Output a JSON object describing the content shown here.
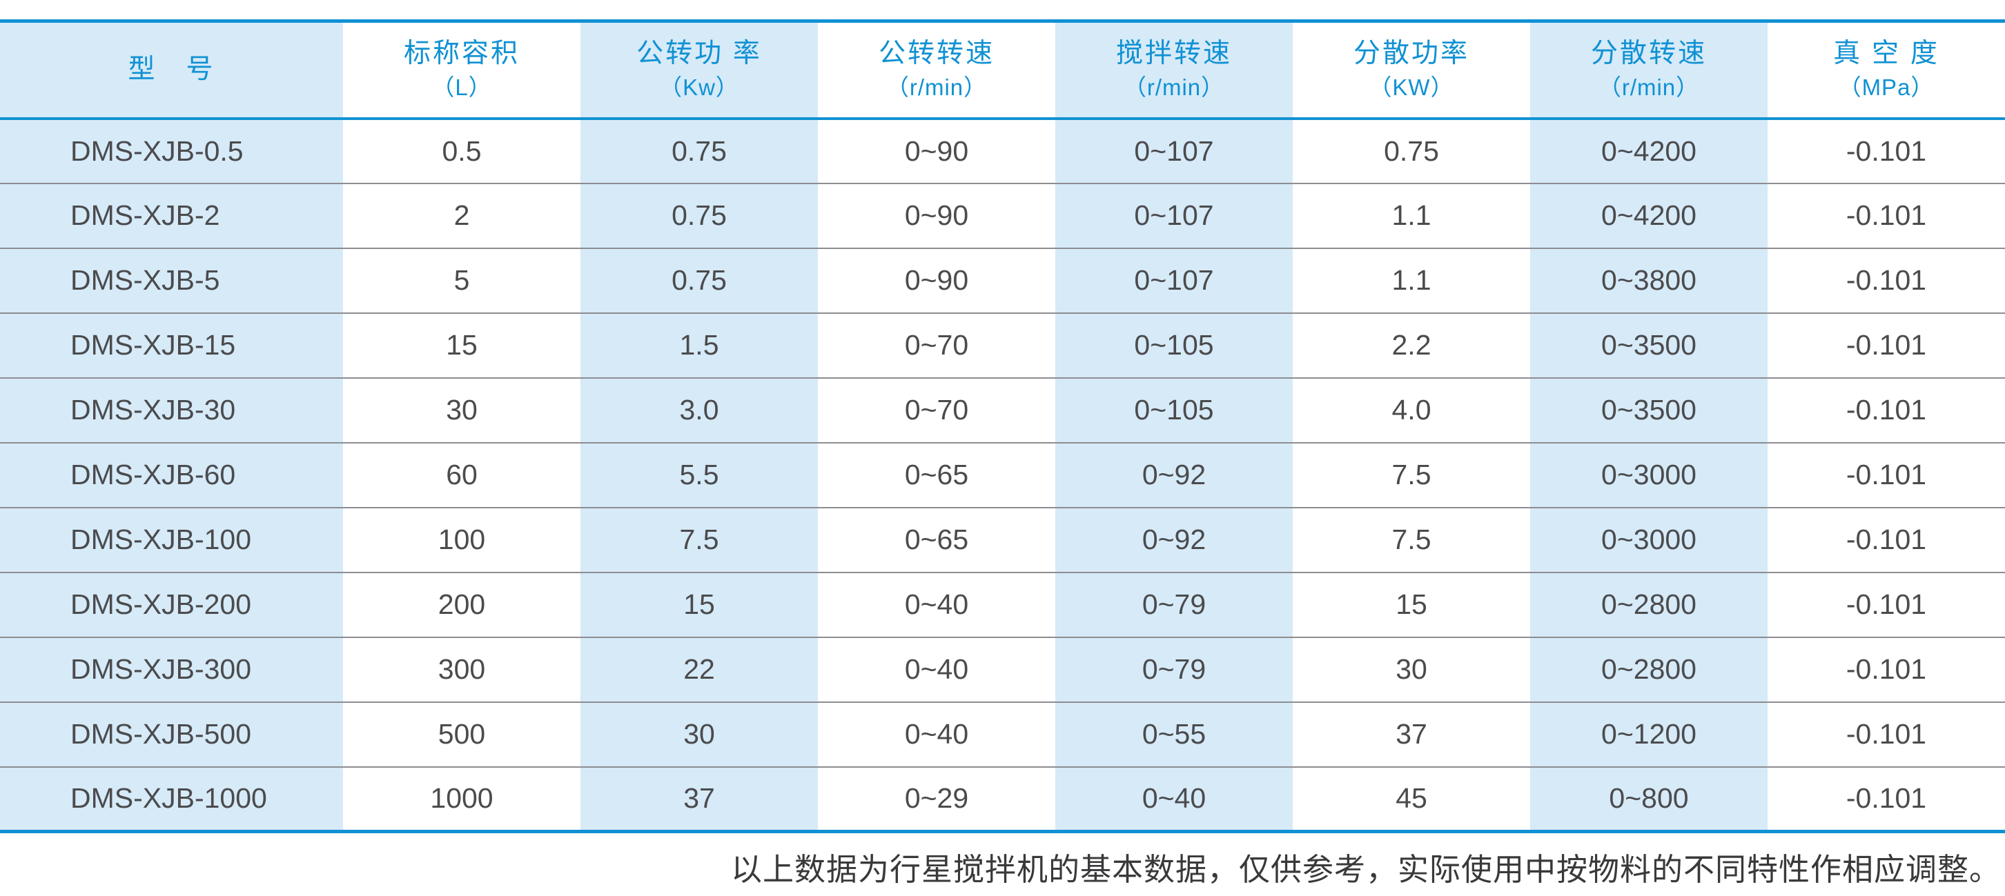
{
  "colors": {
    "accent_blue": "#1091d3",
    "stripe_light_blue": "#d6eaf8",
    "data_text": "#4b4b4d",
    "row_divider": "#8d8d90"
  },
  "table": {
    "columns": [
      {
        "title": "型　号",
        "unit": ""
      },
      {
        "title": "标称容积",
        "unit": "（L）"
      },
      {
        "title": "公转功 率",
        "unit": "（Kw）"
      },
      {
        "title": "公转转速",
        "unit": "（r/min）"
      },
      {
        "title": "搅拌转速",
        "unit": "（r/min）"
      },
      {
        "title": "分散功率",
        "unit": "（KW）"
      },
      {
        "title": "分散转速",
        "unit": "（r/min）"
      },
      {
        "title": "真 空 度",
        "unit": "（MPa）"
      }
    ],
    "rows": [
      [
        "DMS-XJB-0.5",
        "0.5",
        "0.75",
        "0~90",
        "0~107",
        "0.75",
        "0~4200",
        "-0.101"
      ],
      [
        "DMS-XJB-2",
        "2",
        "0.75",
        "0~90",
        "0~107",
        "1.1",
        "0~4200",
        "-0.101"
      ],
      [
        "DMS-XJB-5",
        "5",
        "0.75",
        "0~90",
        "0~107",
        "1.1",
        "0~3800",
        "-0.101"
      ],
      [
        "DMS-XJB-15",
        "15",
        "1.5",
        "0~70",
        "0~105",
        "2.2",
        "0~3500",
        "-0.101"
      ],
      [
        "DMS-XJB-30",
        "30",
        "3.0",
        "0~70",
        "0~105",
        "4.0",
        "0~3500",
        "-0.101"
      ],
      [
        "DMS-XJB-60",
        "60",
        "5.5",
        "0~65",
        "0~92",
        "7.5",
        "0~3000",
        "-0.101"
      ],
      [
        "DMS-XJB-100",
        "100",
        "7.5",
        "0~65",
        "0~92",
        "7.5",
        "0~3000",
        "-0.101"
      ],
      [
        "DMS-XJB-200",
        "200",
        "15",
        "0~40",
        "0~79",
        "15",
        "0~2800",
        "-0.101"
      ],
      [
        "DMS-XJB-300",
        "300",
        "22",
        "0~40",
        "0~79",
        "30",
        "0~2800",
        "-0.101"
      ],
      [
        "DMS-XJB-500",
        "500",
        "30",
        "0~40",
        "0~55",
        "37",
        "0~1200",
        "-0.101"
      ],
      [
        "DMS-XJB-1000",
        "1000",
        "37",
        "0~29",
        "0~40",
        "45",
        "0~800",
        "-0.101"
      ]
    ]
  },
  "footnote": "以上数据为行星搅拌机的基本数据，仅供参考，实际使用中按物料的不同特性作相应调整。"
}
